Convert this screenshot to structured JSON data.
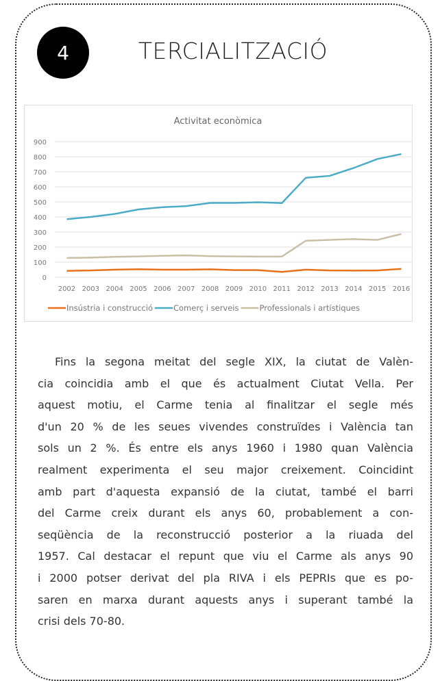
{
  "header": {
    "number": "4",
    "title": "TERCIALITZACIÓ"
  },
  "chart_data": {
    "type": "line",
    "title": "Activitat econòmica",
    "categories": [
      "2002",
      "2003",
      "2004",
      "2005",
      "2006",
      "2007",
      "2008",
      "2009",
      "2010",
      "2011",
      "2012",
      "2013",
      "2014",
      "2015",
      "2016"
    ],
    "series": [
      {
        "name": "Insústria i construcció",
        "color": "#e8701a",
        "values": [
          42,
          45,
          50,
          53,
          50,
          50,
          52,
          47,
          47,
          35,
          50,
          45,
          44,
          45,
          55
        ]
      },
      {
        "name": "Comerç i serveis",
        "color": "#4bacc6",
        "values": [
          385,
          400,
          420,
          450,
          465,
          472,
          493,
          493,
          498,
          492,
          660,
          673,
          725,
          785,
          818
        ]
      },
      {
        "name": "Professionals i artístiques",
        "color": "#c9bfa5",
        "values": [
          128,
          130,
          135,
          138,
          142,
          145,
          140,
          138,
          137,
          137,
          242,
          248,
          253,
          248,
          287
        ]
      }
    ],
    "ylim": [
      0,
      900
    ],
    "yticks": [
      0,
      100,
      200,
      300,
      400,
      500,
      600,
      700,
      800,
      900
    ],
    "grid": true,
    "legend": "bottom"
  },
  "paragraph_lines": [
    "Fins la segona meitat del segle XIX, la ciutat de Valèn-",
    "cia coincidia amb el que és actualment Ciutat Vella. Per",
    "aquest motiu, el Carme tenia al finalitzar el segle més",
    "d'un 20 % de les seues vivendes construïdes i València tan",
    "sols un 2 %. És entre els anys 1960 i 1980 quan València",
    "realment experimenta el seu major creixement. Coincidint",
    "amb part d'aquesta expansió de la ciutat, també el barri",
    "del Carme creix durant els anys 60, probablement a con-",
    "seqüència de la reconstrucció posterior a la riuada del",
    "1957. Cal destacar el repunt que viu el Carme als anys 90",
    "i 2000 potser derivat del pla RIVA i els PEPRIs que es po-",
    "saren en marxa durant aquests anys i superant també la",
    "crisi dels 70-80."
  ]
}
